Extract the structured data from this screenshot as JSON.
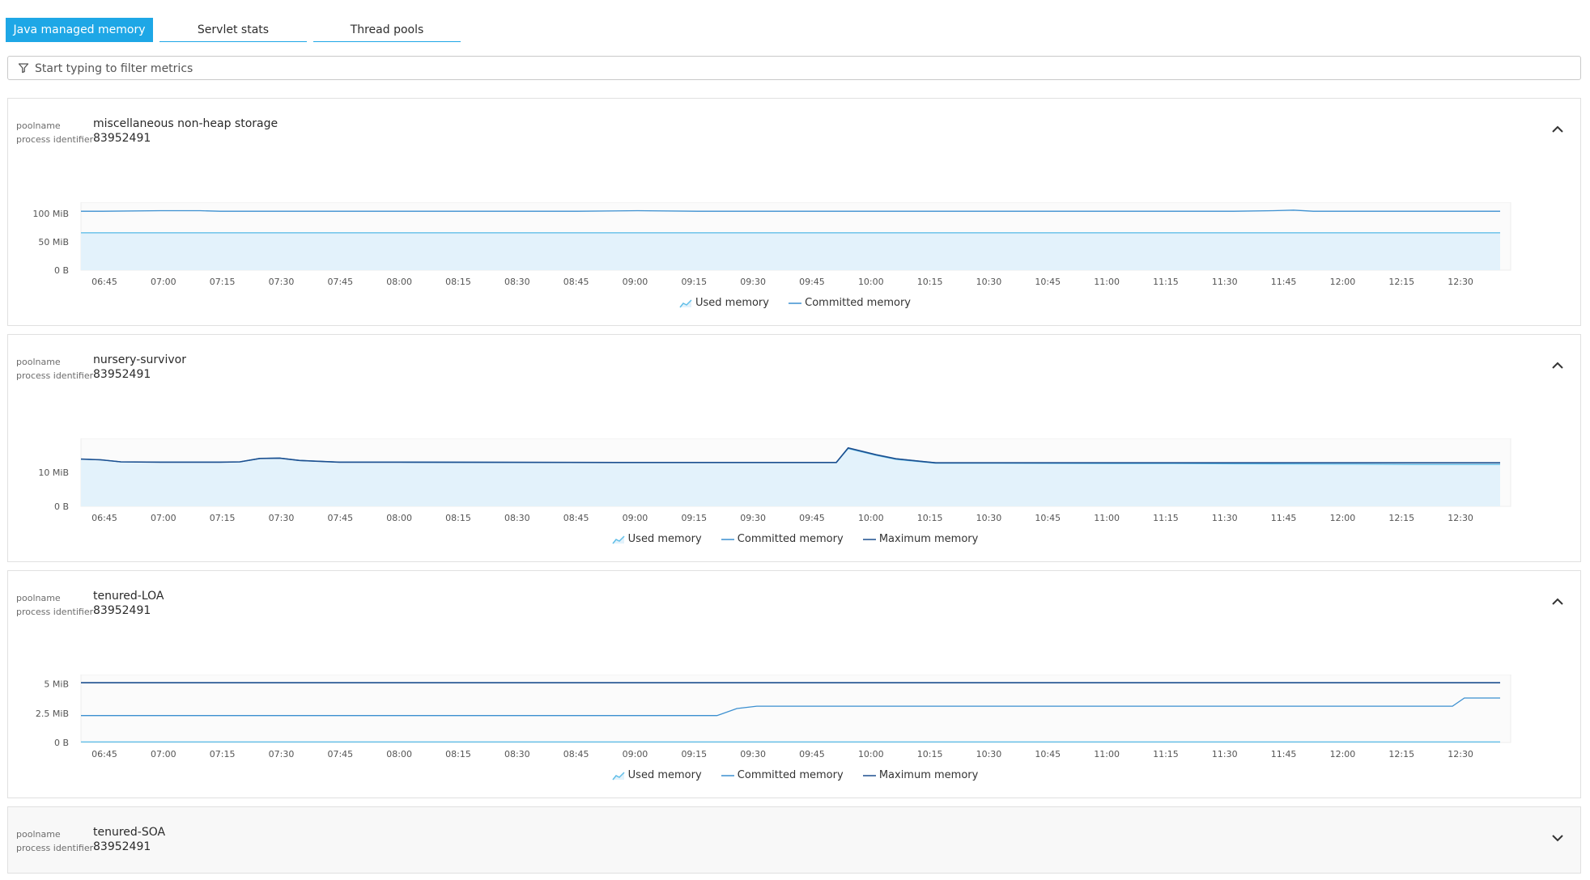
{
  "tabs": [
    {
      "label": "Java managed memory",
      "active": true
    },
    {
      "label": "Servlet stats",
      "active": false
    },
    {
      "label": "Thread pools",
      "active": false
    }
  ],
  "filter": {
    "placeholder": "Start typing to filter metrics",
    "icon": "filter-icon"
  },
  "colors": {
    "accent": "#1ea7e6",
    "used": "#62bfe8",
    "used_fill": "#e3f2fb",
    "committed": "#3b8fd0",
    "maximum": "#1c4f8f"
  },
  "x_ticks": [
    "06:45",
    "07:00",
    "07:15",
    "07:30",
    "07:45",
    "08:00",
    "08:15",
    "08:30",
    "08:45",
    "09:00",
    "09:15",
    "09:30",
    "09:45",
    "10:00",
    "10:15",
    "10:30",
    "10:45",
    "11:00",
    "11:15",
    "11:30",
    "11:45",
    "12:00",
    "12:15",
    "12:30"
  ],
  "cards": [
    {
      "poolname_label": "poolname",
      "poolname": "miscellaneous non-heap storage",
      "pid_label": "process identifier",
      "pid": "83952491",
      "expanded": true,
      "legend": [
        "Used memory",
        "Committed memory"
      ]
    },
    {
      "poolname_label": "poolname",
      "poolname": "nursery-survivor",
      "pid_label": "process identifier",
      "pid": "83952491",
      "expanded": true,
      "legend": [
        "Used memory",
        "Committed memory",
        "Maximum memory"
      ]
    },
    {
      "poolname_label": "poolname",
      "poolname": "tenured-LOA",
      "pid_label": "process identifier",
      "pid": "83952491",
      "expanded": true,
      "legend": [
        "Used memory",
        "Committed memory",
        "Maximum memory"
      ]
    },
    {
      "poolname_label": "poolname",
      "poolname": "tenured-SOA",
      "pid_label": "process identifier",
      "pid": "83952491",
      "expanded": false
    }
  ],
  "chart_data": [
    {
      "type": "area",
      "title": "miscellaneous non-heap storage",
      "x": [
        "06:40",
        "06:45",
        "07:00",
        "07:10",
        "07:15",
        "07:30",
        "07:45",
        "08:00",
        "08:15",
        "08:30",
        "08:45",
        "09:00",
        "09:15",
        "09:30",
        "09:45",
        "10:00",
        "10:15",
        "10:30",
        "10:45",
        "11:00",
        "11:15",
        "11:30",
        "11:40",
        "11:45",
        "11:50",
        "12:00",
        "12:15",
        "12:30",
        "12:37"
      ],
      "yticks": [
        "0 B",
        "50 MiB",
        "100 MiB"
      ],
      "ylim": [
        0,
        120
      ],
      "series": [
        {
          "name": "Used memory",
          "values": [
            66,
            66,
            66,
            66,
            66,
            66,
            66,
            66,
            66,
            66,
            66,
            66,
            66,
            66,
            66,
            66,
            66,
            66,
            66,
            66,
            66,
            66,
            66,
            66,
            66,
            66,
            66,
            66,
            66
          ]
        },
        {
          "name": "Committed memory",
          "values": [
            104,
            104,
            105,
            105,
            104,
            104,
            104,
            104,
            104,
            104,
            104,
            105,
            104,
            104,
            104,
            104,
            104,
            104,
            104,
            104,
            104,
            104,
            105,
            106,
            104,
            104,
            104,
            104,
            104
          ]
        }
      ]
    },
    {
      "type": "area",
      "title": "nursery-survivor",
      "x": [
        "06:40",
        "06:45",
        "06:50",
        "07:00",
        "07:15",
        "07:20",
        "07:25",
        "07:30",
        "07:35",
        "07:45",
        "08:00",
        "09:00",
        "09:30",
        "09:50",
        "09:53",
        "10:00",
        "10:05",
        "10:15",
        "10:30",
        "11:00",
        "11:15",
        "11:30",
        "12:00",
        "12:15",
        "12:37"
      ],
      "yticks": [
        "0 B",
        "10 MiB"
      ],
      "ylim": [
        0,
        20
      ],
      "series": [
        {
          "name": "Used memory",
          "values": [
            13.9,
            13.7,
            13.1,
            13.0,
            13.0,
            13.1,
            14.1,
            14.2,
            13.5,
            13.0,
            13.0,
            12.9,
            12.9,
            12.9,
            17.0,
            15.0,
            13.8,
            12.7,
            12.7,
            12.6,
            12.6,
            12.5,
            12.4,
            12.3,
            12.3
          ]
        },
        {
          "name": "Committed memory",
          "values": [
            13.9,
            13.7,
            13.1,
            13.0,
            13.0,
            13.1,
            14.1,
            14.2,
            13.5,
            13.0,
            13.0,
            12.9,
            12.9,
            12.9,
            17.2,
            15.2,
            14.0,
            12.8,
            12.8,
            12.8,
            12.8,
            12.8,
            12.8,
            12.8,
            12.8
          ]
        },
        {
          "name": "Maximum memory",
          "values": [
            13.9,
            13.7,
            13.1,
            13.0,
            13.0,
            13.1,
            14.1,
            14.2,
            13.5,
            13.0,
            13.0,
            12.9,
            12.9,
            12.9,
            17.2,
            15.2,
            14.0,
            12.8,
            12.8,
            12.8,
            12.8,
            12.8,
            12.8,
            12.8,
            12.8
          ]
        }
      ]
    },
    {
      "type": "line",
      "title": "tenured-LOA",
      "x": [
        "06:40",
        "06:45",
        "07:00",
        "08:00",
        "09:00",
        "09:20",
        "09:25",
        "09:30",
        "10:00",
        "11:00",
        "12:00",
        "12:25",
        "12:28",
        "12:37"
      ],
      "yticks": [
        "0 B",
        "2.5 MiB",
        "5 MiB"
      ],
      "ylim": [
        0,
        5.8
      ],
      "series": [
        {
          "name": "Used memory",
          "values": [
            0.05,
            0.05,
            0.05,
            0.05,
            0.05,
            0.05,
            0.05,
            0.05,
            0.05,
            0.05,
            0.05,
            0.05,
            0.05,
            0.05
          ]
        },
        {
          "name": "Committed memory",
          "values": [
            2.3,
            2.3,
            2.3,
            2.3,
            2.3,
            2.3,
            2.9,
            3.1,
            3.1,
            3.1,
            3.1,
            3.1,
            3.8,
            3.8
          ]
        },
        {
          "name": "Maximum memory",
          "values": [
            5.1,
            5.1,
            5.1,
            5.1,
            5.1,
            5.1,
            5.1,
            5.1,
            5.1,
            5.1,
            5.1,
            5.1,
            5.1,
            5.1
          ]
        }
      ]
    }
  ]
}
